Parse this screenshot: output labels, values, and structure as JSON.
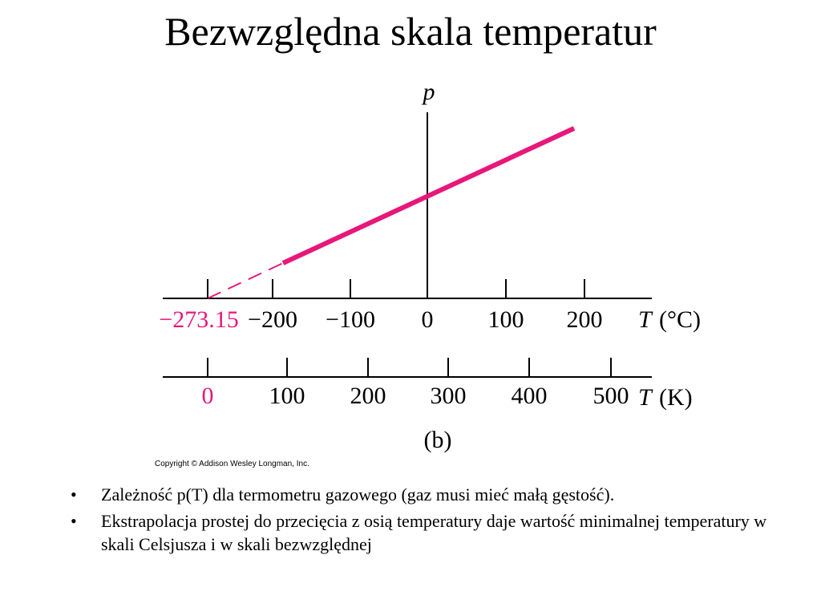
{
  "header": {
    "title": "Bezwzględna skala temperatur"
  },
  "figure": {
    "y_axis_label": "p",
    "celsius_axis": {
      "ticks": [
        "−273.15",
        "−200",
        "−100",
        "0",
        "100",
        "200"
      ],
      "symbol": "T",
      "unit": "(°C)"
    },
    "kelvin_axis": {
      "ticks": [
        "0",
        "100",
        "200",
        "300",
        "400",
        "500"
      ],
      "symbol": "T",
      "unit": "(K)"
    },
    "caption": "(b)",
    "copyright": "Copyright © Addison Wesley Longman, Inc."
  },
  "bullets": [
    "Zależność p(T) dla termometru gazowego (gaz musi mieć małą gęstość).",
    "Ekstrapolacja prostej do przecięcia z osią temperatury daje wartość minimalnej temperatury w skali Celsjusza i w skali bezwzględnej"
  ]
}
